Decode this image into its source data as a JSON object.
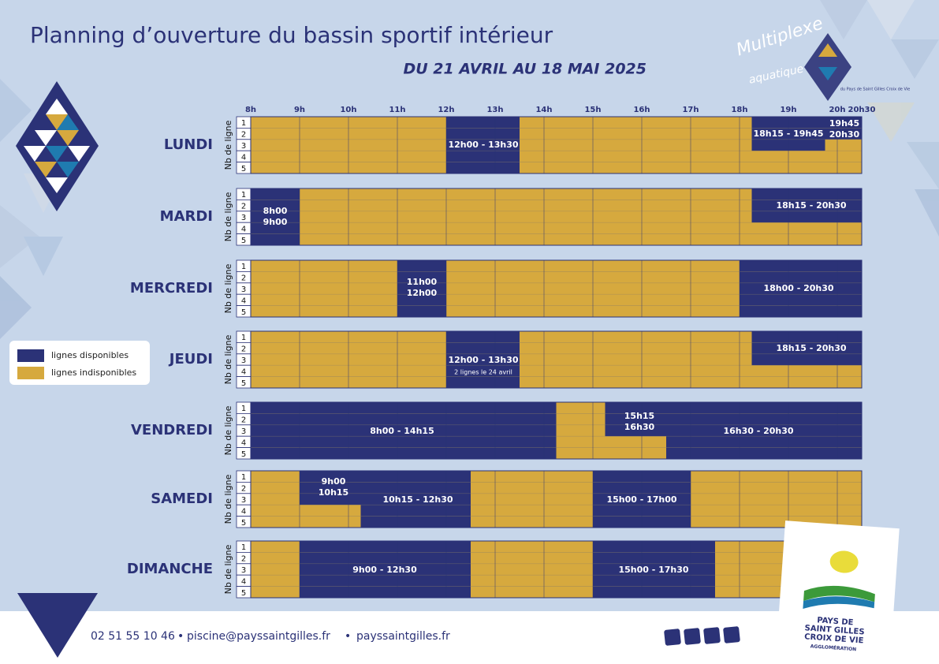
{
  "header": {
    "title": "Planning d’ouverture du bassin sportif intérieur",
    "subtitle": "DU 21 AVRIL AU 18 MAI 2025"
  },
  "hours": [
    "8h",
    "9h",
    "10h",
    "11h",
    "12h",
    "13h",
    "14h",
    "15h",
    "16h",
    "17h",
    "18h",
    "19h",
    "20h",
    "20h30"
  ],
  "line_axis_label": "Nb de ligne",
  "line_numbers": [
    "1",
    "2",
    "3",
    "4",
    "5"
  ],
  "days": [
    {
      "name": "LUNDI",
      "slots": [
        {
          "text": [
            "12h00 - 13h30"
          ]
        },
        {
          "text": [
            "18h15 - 19h45"
          ]
        },
        {
          "text": [
            "19h45",
            "20h30"
          ]
        }
      ]
    },
    {
      "name": "MARDI",
      "slots": [
        {
          "text": [
            "8h00",
            "9h00"
          ]
        },
        {
          "text": [
            "18h15 - 20h30"
          ]
        }
      ]
    },
    {
      "name": "MERCREDI",
      "slots": [
        {
          "text": [
            "11h00",
            "12h00"
          ]
        },
        {
          "text": [
            "18h00 - 20h30"
          ]
        }
      ]
    },
    {
      "name": "JEUDI",
      "slots": [
        {
          "text": [
            "12h00 - 13h30"
          ],
          "note": "2 lignes le 24 avril"
        },
        {
          "text": [
            "18h15 - 20h30"
          ]
        }
      ]
    },
    {
      "name": "VENDREDI",
      "slots": [
        {
          "text": [
            "8h00 - 14h15"
          ]
        },
        {
          "text": [
            "15h15",
            "16h30"
          ]
        },
        {
          "text": [
            "16h30 - 20h30"
          ]
        }
      ]
    },
    {
      "name": "SAMEDI",
      "slots": [
        {
          "text": [
            "9h00",
            "10h15"
          ]
        },
        {
          "text": [
            "10h15 - 12h30"
          ]
        },
        {
          "text": [
            "15h00 - 17h00"
          ]
        }
      ]
    },
    {
      "name": "DIMANCHE",
      "slots": [
        {
          "text": [
            "9h00 - 12h30"
          ]
        },
        {
          "text": [
            "15h00 - 17h30"
          ]
        }
      ]
    }
  ],
  "legend": {
    "available": "lignes disponibles",
    "unavailable": "lignes indisponibles"
  },
  "footer": {
    "phone": "02 51 55 10 46",
    "separator": "•",
    "email": "piscine@payssaintgilles.fr",
    "website": "payssaintgilles.fr"
  },
  "logos": {
    "multiplexe": [
      "Multiplexe",
      "aquatique"
    ],
    "multiplexe_sub": "du Pays de Saint Gilles Croix de Vie",
    "agglo": [
      "PAYS DE",
      "SAINT GILLES",
      "CROIX DE VIE"
    ],
    "agglo_sub": "AGGLOMÉRATION"
  }
}
